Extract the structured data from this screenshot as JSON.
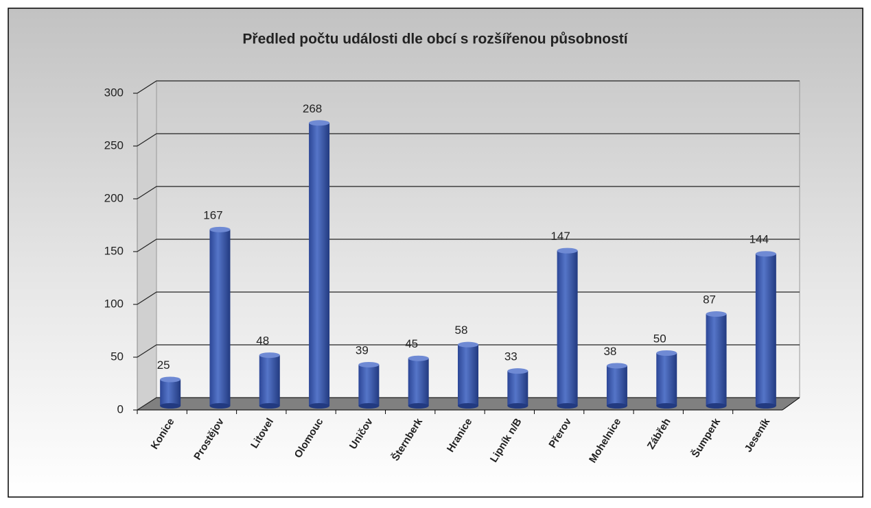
{
  "chart_data": {
    "type": "bar",
    "title": "Předled počtu události dle obcí s rozšířenou působností",
    "categories": [
      "Konice",
      "Prostějov",
      "Litovel",
      "Olomouc",
      "Uničov",
      "Šternberk",
      "Hranice",
      "Lipník n/B",
      "Přerov",
      "Mohelnice",
      "Zábřeh",
      "Šumperk",
      "Jeseník"
    ],
    "values": [
      25,
      167,
      48,
      268,
      39,
      45,
      58,
      33,
      147,
      38,
      50,
      87,
      144
    ],
    "color": "#3f5fb5",
    "ylim": [
      0,
      300
    ],
    "yticks": [
      0,
      50,
      100,
      150,
      200,
      250,
      300
    ],
    "grid": true
  }
}
